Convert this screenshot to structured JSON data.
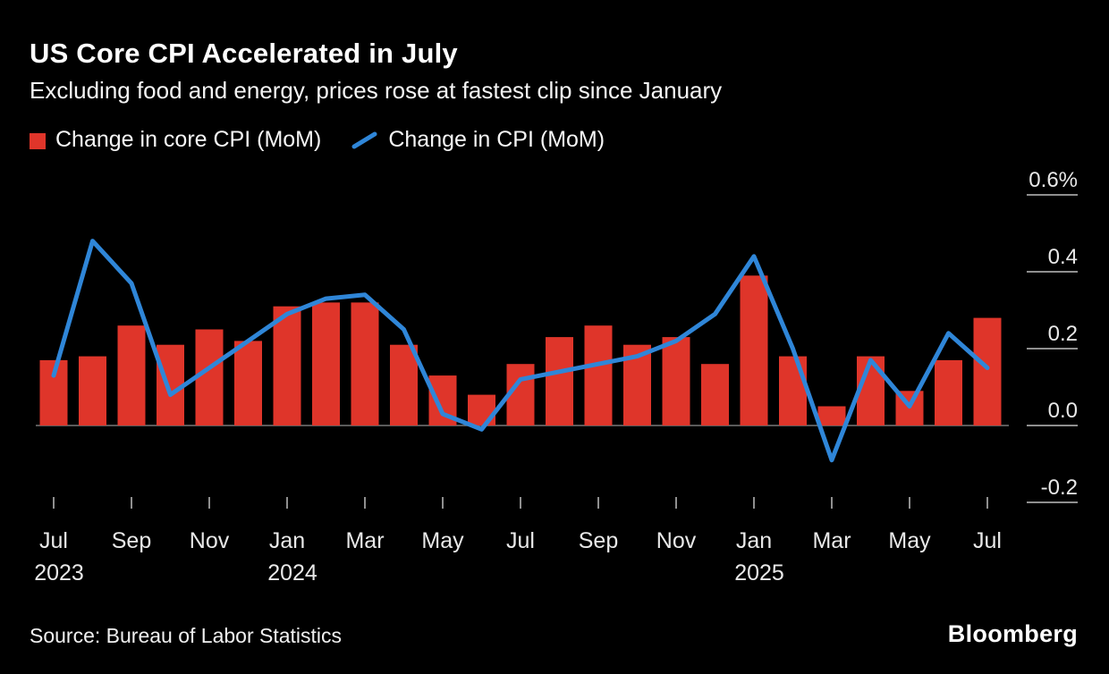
{
  "header": {
    "title": "US Core CPI Accelerated in July",
    "subtitle": "Excluding food and energy, prices rose at fastest clip since January"
  },
  "legend": [
    {
      "label": "Change in core CPI (MoM)",
      "color": "#df352a",
      "marker": "square"
    },
    {
      "label": "Change in CPI (MoM)",
      "color": "#2f86d8",
      "marker": "line"
    }
  ],
  "footer": {
    "source": "Source: Bureau of Labor Statistics",
    "brand": "Bloomberg"
  },
  "colors": {
    "background": "#000000",
    "bar": "#df352a",
    "line": "#2f86d8",
    "axis_text": "#e8e8e8",
    "tick": "#8f8f8f",
    "zero_line": "#787878"
  },
  "chart_data": {
    "type": "bar+line",
    "title": "US Core CPI Accelerated in July",
    "subtitle": "Excluding food and energy, prices rose at fastest clip since January",
    "unit": "%",
    "ylim": [
      -0.25,
      0.65
    ],
    "grid": false,
    "legend_position": "top",
    "source": "Bureau of Labor Statistics",
    "x": [
      "Jul 2023",
      "Aug 2023",
      "Sep 2023",
      "Oct 2023",
      "Nov 2023",
      "Dec 2023",
      "Jan 2024",
      "Feb 2024",
      "Mar 2024",
      "Apr 2024",
      "May 2024",
      "Jun 2024",
      "Jul 2024",
      "Aug 2024",
      "Sep 2024",
      "Oct 2024",
      "Nov 2024",
      "Dec 2024",
      "Jan 2025",
      "Feb 2025",
      "Mar 2025",
      "Apr 2025",
      "May 2025",
      "Jun 2025",
      "Jul 2025"
    ],
    "series": [
      {
        "name": "Change in core CPI (MoM)",
        "type": "bar",
        "color": "#df352a",
        "values": [
          0.17,
          0.18,
          0.26,
          0.21,
          0.25,
          0.22,
          0.31,
          0.32,
          0.32,
          0.21,
          0.13,
          0.08,
          0.16,
          0.23,
          0.26,
          0.21,
          0.23,
          0.16,
          0.39,
          0.18,
          0.05,
          0.18,
          0.09,
          0.17,
          0.28
        ]
      },
      {
        "name": "Change in CPI (MoM)",
        "type": "line",
        "color": "#2f86d8",
        "values": [
          0.13,
          0.48,
          0.37,
          0.08,
          0.15,
          0.22,
          0.29,
          0.33,
          0.34,
          0.25,
          0.03,
          -0.01,
          0.12,
          0.14,
          0.16,
          0.18,
          0.22,
          0.29,
          0.44,
          0.2,
          -0.09,
          0.17,
          0.05,
          0.24,
          0.15
        ]
      }
    ],
    "y_ticks": [
      {
        "value": 0.6,
        "label": "0.6%"
      },
      {
        "value": 0.4,
        "label": "0.4"
      },
      {
        "value": 0.2,
        "label": "0.2"
      },
      {
        "value": 0,
        "label": "0.0"
      },
      {
        "value": -0.2,
        "label": "-0.2"
      }
    ],
    "x_ticks": [
      {
        "index": 0,
        "label": "Jul",
        "year": "2023"
      },
      {
        "index": 2,
        "label": "Sep"
      },
      {
        "index": 4,
        "label": "Nov"
      },
      {
        "index": 6,
        "label": "Jan",
        "year": "2024"
      },
      {
        "index": 8,
        "label": "Mar"
      },
      {
        "index": 10,
        "label": "May"
      },
      {
        "index": 12,
        "label": "Jul"
      },
      {
        "index": 14,
        "label": "Sep"
      },
      {
        "index": 16,
        "label": "Nov"
      },
      {
        "index": 18,
        "label": "Jan",
        "year": "2025"
      },
      {
        "index": 20,
        "label": "Mar"
      },
      {
        "index": 22,
        "label": "May"
      },
      {
        "index": 24,
        "label": "Jul"
      }
    ]
  }
}
